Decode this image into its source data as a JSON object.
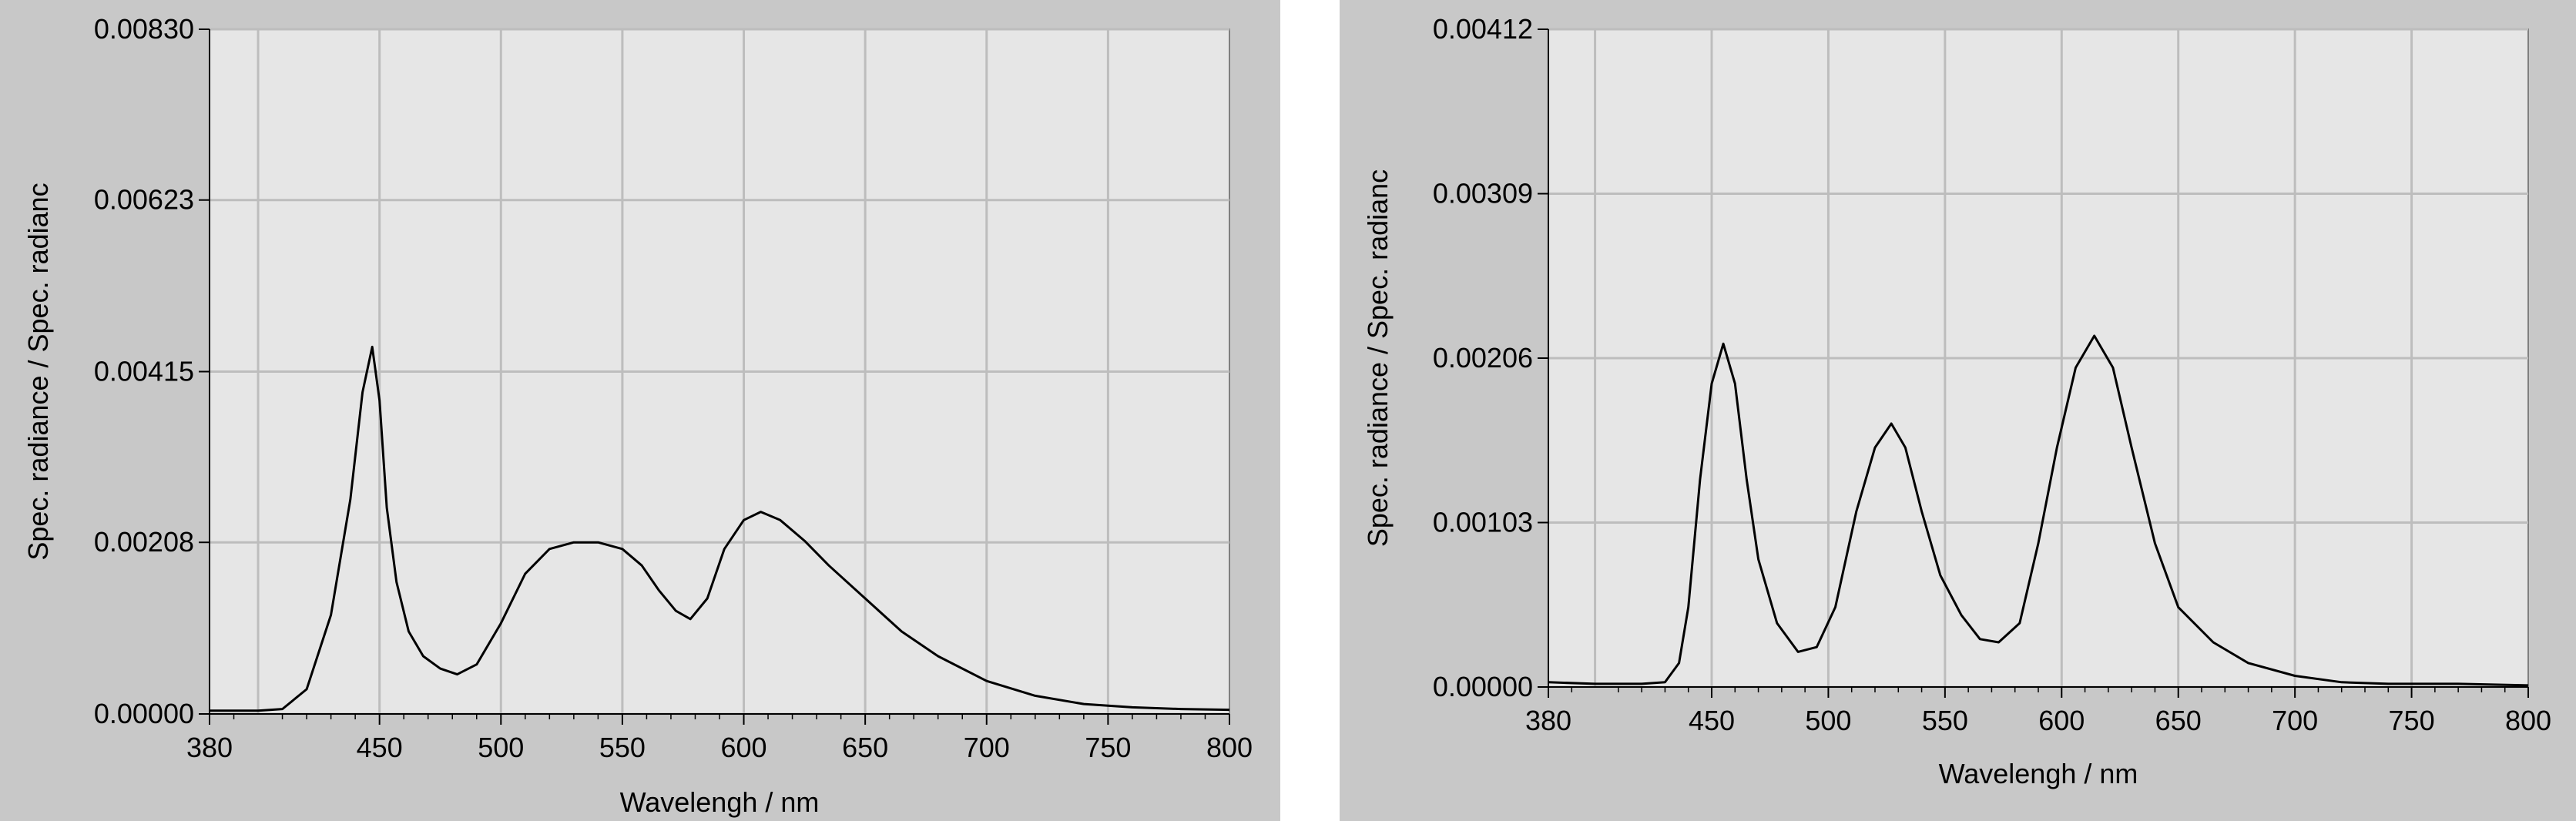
{
  "chart_data": [
    {
      "type": "line",
      "xlabel": "Wavelengh / nm",
      "ylabel": "Spec. radiance / Spec. radianc",
      "xlim": [
        380,
        800
      ],
      "ylim": [
        0.0,
        0.0083
      ],
      "x_ticks": [
        "380",
        "450",
        "500",
        "550",
        "600",
        "650",
        "700",
        "750",
        "800"
      ],
      "y_ticks": [
        "0.00000",
        "0.00208",
        "0.00415",
        "0.00623",
        "0.00830"
      ],
      "x_gridlines": [
        400,
        450,
        500,
        550,
        600,
        650,
        700,
        750
      ],
      "grid": true,
      "series": [
        {
          "color": "#000000",
          "points": [
            [
              380,
              4e-05
            ],
            [
              400,
              4e-05
            ],
            [
              410,
              6e-05
            ],
            [
              420,
              0.0003
            ],
            [
              430,
              0.0012
            ],
            [
              438,
              0.0026
            ],
            [
              443,
              0.0039
            ],
            [
              447,
              0.00445
            ],
            [
              450,
              0.0038
            ],
            [
              453,
              0.0025
            ],
            [
              457,
              0.0016
            ],
            [
              462,
              0.001
            ],
            [
              468,
              0.0007
            ],
            [
              475,
              0.00055
            ],
            [
              482,
              0.00048
            ],
            [
              490,
              0.0006
            ],
            [
              500,
              0.0011
            ],
            [
              510,
              0.0017
            ],
            [
              520,
              0.002
            ],
            [
              530,
              0.00208
            ],
            [
              540,
              0.00208
            ],
            [
              550,
              0.002
            ],
            [
              558,
              0.0018
            ],
            [
              565,
              0.0015
            ],
            [
              572,
              0.00125
            ],
            [
              578,
              0.00115
            ],
            [
              585,
              0.0014
            ],
            [
              592,
              0.002
            ],
            [
              600,
              0.00235
            ],
            [
              607,
              0.00245
            ],
            [
              615,
              0.00235
            ],
            [
              625,
              0.0021
            ],
            [
              635,
              0.0018
            ],
            [
              650,
              0.0014
            ],
            [
              665,
              0.001
            ],
            [
              680,
              0.0007
            ],
            [
              700,
              0.0004
            ],
            [
              720,
              0.00022
            ],
            [
              740,
              0.00012
            ],
            [
              760,
              8e-05
            ],
            [
              780,
              6e-05
            ],
            [
              800,
              5e-05
            ]
          ]
        }
      ]
    },
    {
      "type": "line",
      "xlabel": "Wavelengh / nm",
      "ylabel": "Spec. radiance / Spec. radianc",
      "xlim": [
        380,
        800
      ],
      "ylim": [
        0.0,
        0.00412
      ],
      "x_ticks": [
        "380",
        "450",
        "500",
        "550",
        "600",
        "650",
        "700",
        "750",
        "800"
      ],
      "y_ticks": [
        "0.00000",
        "0.00103",
        "0.00206",
        "0.00309",
        "0.00412"
      ],
      "x_gridlines": [
        400,
        450,
        500,
        550,
        600,
        650,
        700,
        750
      ],
      "grid": true,
      "series": [
        {
          "color": "#000000",
          "points": [
            [
              380,
              3e-05
            ],
            [
              400,
              2e-05
            ],
            [
              420,
              2e-05
            ],
            [
              430,
              3e-05
            ],
            [
              436,
              0.00015
            ],
            [
              440,
              0.0005
            ],
            [
              445,
              0.0013
            ],
            [
              450,
              0.0019
            ],
            [
              455,
              0.00215
            ],
            [
              460,
              0.0019
            ],
            [
              465,
              0.0013
            ],
            [
              470,
              0.0008
            ],
            [
              478,
              0.0004
            ],
            [
              487,
              0.00022
            ],
            [
              495,
              0.00025
            ],
            [
              503,
              0.0005
            ],
            [
              512,
              0.0011
            ],
            [
              520,
              0.0015
            ],
            [
              527,
              0.00165
            ],
            [
              533,
              0.0015
            ],
            [
              540,
              0.0011
            ],
            [
              548,
              0.0007
            ],
            [
              557,
              0.00045
            ],
            [
              565,
              0.0003
            ],
            [
              573,
              0.00028
            ],
            [
              582,
              0.0004
            ],
            [
              590,
              0.0009
            ],
            [
              598,
              0.0015
            ],
            [
              606,
              0.002
            ],
            [
              614,
              0.0022
            ],
            [
              622,
              0.002
            ],
            [
              630,
              0.0015
            ],
            [
              640,
              0.0009
            ],
            [
              650,
              0.0005
            ],
            [
              665,
              0.00028
            ],
            [
              680,
              0.00015
            ],
            [
              700,
              7e-05
            ],
            [
              720,
              3e-05
            ],
            [
              740,
              2e-05
            ],
            [
              770,
              2e-05
            ],
            [
              800,
              1e-05
            ]
          ]
        }
      ]
    }
  ]
}
